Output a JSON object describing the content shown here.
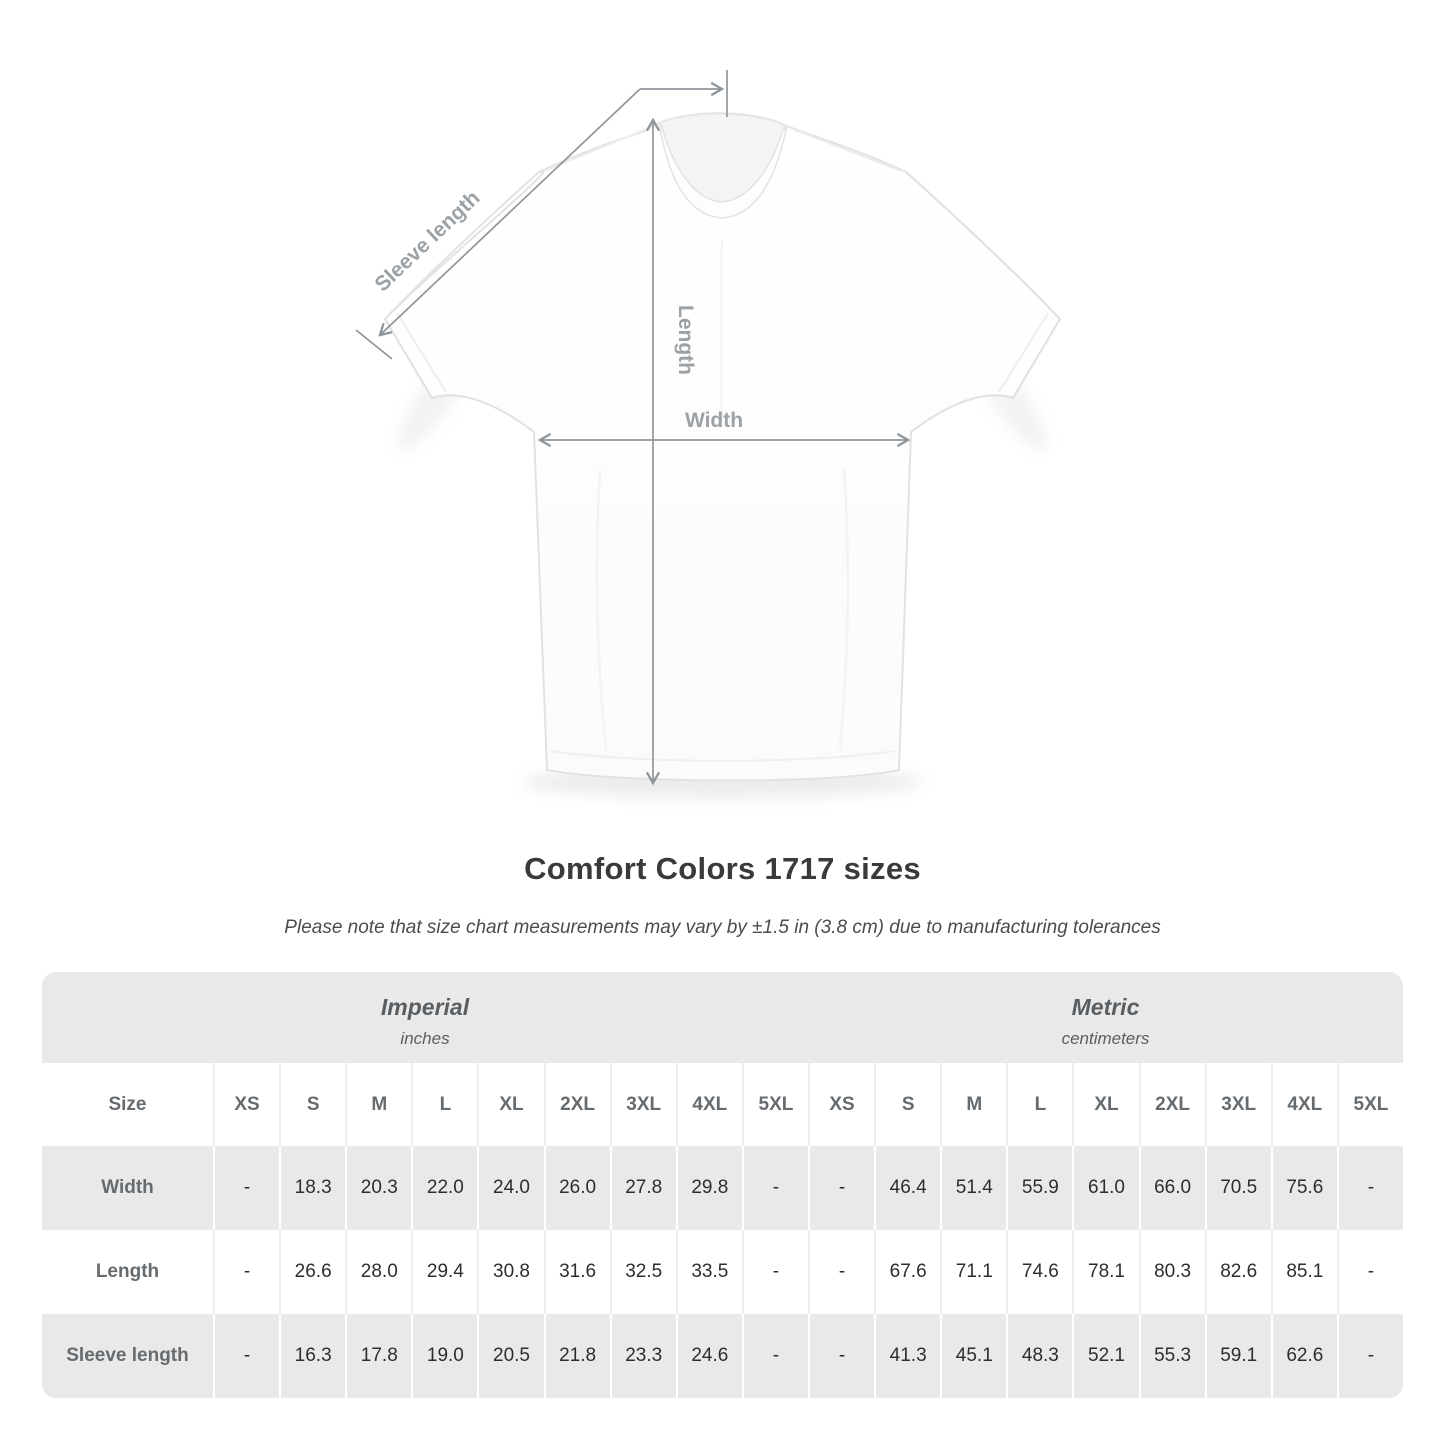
{
  "diagram": {
    "measurement_labels": {
      "sleeve_length": "Sleeve length",
      "length": "Length",
      "width": "Width"
    },
    "line_color": "#8f969b",
    "label_color": "#9ca1a5"
  },
  "heading": {
    "title": "Comfort Colors 1717 sizes",
    "note": "Please note that size chart measurements may vary by ±1.5 in (3.8 cm) due to manufacturing tolerances"
  },
  "size_chart": {
    "unit_groups": [
      {
        "name": "Imperial",
        "unit": "inches"
      },
      {
        "name": "Metric",
        "unit": "centimeters"
      }
    ],
    "corner_label": "Size",
    "sizes": [
      "XS",
      "S",
      "M",
      "L",
      "XL",
      "2XL",
      "3XL",
      "4XL",
      "5XL"
    ],
    "rows": [
      {
        "label": "Width",
        "imperial": [
          "-",
          "18.3",
          "20.3",
          "22.0",
          "24.0",
          "26.0",
          "27.8",
          "29.8",
          "-"
        ],
        "metric": [
          "-",
          "46.4",
          "51.4",
          "55.9",
          "61.0",
          "66.0",
          "70.5",
          "75.6",
          "-"
        ]
      },
      {
        "label": "Length",
        "imperial": [
          "-",
          "26.6",
          "28.0",
          "29.4",
          "30.8",
          "31.6",
          "32.5",
          "33.5",
          "-"
        ],
        "metric": [
          "-",
          "67.6",
          "71.1",
          "74.6",
          "78.1",
          "80.3",
          "82.6",
          "85.1",
          "-"
        ]
      },
      {
        "label": "Sleeve length",
        "imperial": [
          "-",
          "16.3",
          "17.8",
          "19.0",
          "20.5",
          "21.8",
          "23.3",
          "24.6",
          "-"
        ],
        "metric": [
          "-",
          "41.3",
          "45.1",
          "48.3",
          "52.1",
          "55.3",
          "59.1",
          "62.6",
          "-"
        ]
      }
    ]
  },
  "colors": {
    "table_band_gray": "#e9e9e9",
    "value_text": "#2b2e30",
    "header_text": "#666b6f",
    "title_text": "#3a3a3a"
  }
}
